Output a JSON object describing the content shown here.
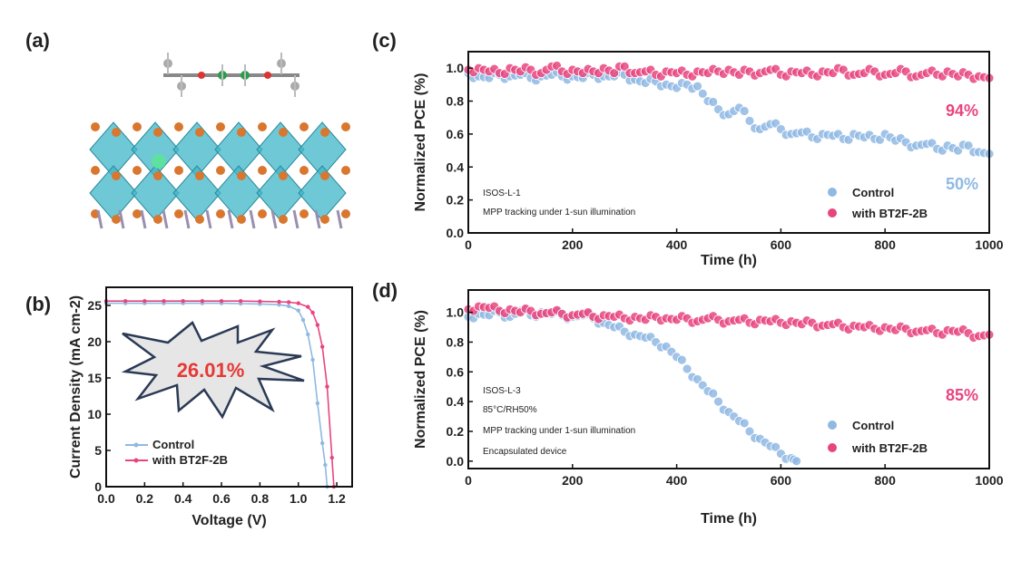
{
  "panel_labels": [
    "(a)",
    "(b)",
    "(c)",
    "(d)"
  ],
  "colors": {
    "control": "#8fb9e3",
    "bt2f": "#e8457f",
    "efficiency_text": "#e53935",
    "teal": "#3fb5c8",
    "orange": "#d9772e"
  },
  "panel_a": {
    "icon": "perovskite-molecule-structure"
  },
  "chart_data": [
    {
      "panel": "b",
      "type": "line",
      "xlabel": "Voltage (V)",
      "ylabel": "Current Density (mA cm-2)",
      "xlim": [
        0,
        1.28
      ],
      "ylim": [
        0,
        27.5
      ],
      "xticks": [
        0,
        0.2,
        0.4,
        0.6,
        0.8,
        1.0,
        1.2
      ],
      "xticklabels": [
        "0.0",
        "0.2",
        "0.4",
        "0.6",
        "0.8",
        "1.0",
        "1.2"
      ],
      "yticks": [
        0,
        5,
        10,
        15,
        20,
        25
      ],
      "yticklabels": [
        "0",
        "5",
        "10",
        "15",
        "20",
        "25"
      ],
      "grid": false,
      "legend": "bottom-left",
      "annotation": "26.01%",
      "series": [
        {
          "name": "Control",
          "x": [
            0,
            0.1,
            0.2,
            0.3,
            0.4,
            0.5,
            0.6,
            0.7,
            0.8,
            0.9,
            0.95,
            1.0,
            1.025,
            1.05,
            1.075,
            1.1,
            1.125,
            1.14,
            1.15
          ],
          "y": [
            25.3,
            25.3,
            25.3,
            25.3,
            25.3,
            25.3,
            25.3,
            25.25,
            25.2,
            25.1,
            24.9,
            24.3,
            23.0,
            21.0,
            17.5,
            11.5,
            6.0,
            3.0,
            0
          ]
        },
        {
          "name": "with BT2F-2B",
          "x": [
            0,
            0.1,
            0.2,
            0.3,
            0.4,
            0.5,
            0.6,
            0.7,
            0.8,
            0.9,
            0.95,
            1.0,
            1.05,
            1.075,
            1.1,
            1.125,
            1.15,
            1.175,
            1.185
          ],
          "y": [
            25.6,
            25.6,
            25.6,
            25.6,
            25.6,
            25.6,
            25.6,
            25.6,
            25.55,
            25.5,
            25.45,
            25.3,
            24.8,
            24.0,
            22.3,
            19.3,
            13.8,
            4.0,
            0
          ]
        }
      ]
    },
    {
      "panel": "c",
      "type": "scatter",
      "xlabel": "Time (h)",
      "ylabel": "Normalized PCE (%)",
      "xlim": [
        0,
        1000
      ],
      "ylim": [
        0,
        1.1
      ],
      "xticks": [
        0,
        200,
        400,
        600,
        800,
        1000
      ],
      "xticklabels": [
        "0",
        "200",
        "400",
        "600",
        "800",
        "1000"
      ],
      "yticks": [
        0,
        0.2,
        0.4,
        0.6,
        0.8,
        1.0
      ],
      "yticklabels": [
        "0.0",
        "0.2",
        "0.4",
        "0.6",
        "0.8",
        "1.0"
      ],
      "grid": false,
      "legend": "bottom-right",
      "annotations": [
        "ISOS-L-1",
        "MPP tracking under 1-sun illumination",
        "94%",
        "50%"
      ],
      "x": [
        0,
        20,
        40,
        60,
        80,
        100,
        120,
        140,
        160,
        180,
        200,
        220,
        240,
        260,
        280,
        300,
        320,
        340,
        360,
        380,
        400,
        420,
        440,
        460,
        480,
        500,
        520,
        540,
        560,
        580,
        600,
        620,
        640,
        660,
        680,
        700,
        720,
        740,
        760,
        780,
        800,
        820,
        840,
        860,
        880,
        900,
        920,
        940,
        960,
        980,
        1000
      ],
      "series": [
        {
          "name": "Control",
          "values": [
            0.97,
            0.95,
            0.94,
            0.96,
            0.95,
            0.96,
            0.94,
            0.95,
            0.96,
            0.95,
            0.95,
            0.94,
            0.96,
            0.95,
            0.95,
            0.96,
            0.93,
            0.91,
            0.92,
            0.9,
            0.88,
            0.9,
            0.89,
            0.8,
            0.75,
            0.72,
            0.76,
            0.68,
            0.63,
            0.66,
            0.63,
            0.6,
            0.61,
            0.58,
            0.6,
            0.59,
            0.57,
            0.6,
            0.58,
            0.57,
            0.6,
            0.56,
            0.55,
            0.53,
            0.54,
            0.51,
            0.53,
            0.5,
            0.53,
            0.49,
            0.48
          ]
        },
        {
          "name": "with BT2F-2B",
          "values": [
            0.99,
            1.0,
            0.98,
            0.97,
            1.0,
            0.98,
            0.99,
            0.97,
            1.01,
            0.98,
            0.99,
            0.97,
            0.98,
            1.0,
            0.97,
            1.01,
            0.97,
            0.98,
            0.96,
            0.98,
            0.97,
            0.96,
            0.98,
            0.97,
            0.98,
            0.99,
            0.96,
            0.98,
            0.97,
            0.99,
            0.96,
            0.98,
            0.97,
            0.96,
            0.98,
            0.97,
            0.99,
            0.96,
            0.97,
            0.98,
            0.96,
            0.97,
            0.98,
            0.95,
            0.97,
            0.96,
            0.98,
            0.95,
            0.96,
            0.95,
            0.94
          ]
        }
      ]
    },
    {
      "panel": "d",
      "type": "scatter",
      "xlabel": "Time (h)",
      "ylabel": "Normalized PCE (%)",
      "xlim": [
        0,
        1000
      ],
      "ylim": [
        -0.05,
        1.15
      ],
      "xticks": [
        0,
        200,
        400,
        600,
        800,
        1000
      ],
      "xticklabels": [
        "0",
        "200",
        "400",
        "600",
        "800",
        "1000"
      ],
      "yticks": [
        0,
        0.2,
        0.4,
        0.6,
        0.8,
        1.0
      ],
      "yticklabels": [
        "0.0",
        "0.2",
        "0.4",
        "0.6",
        "0.8",
        "1.0"
      ],
      "grid": false,
      "legend": "bottom-right",
      "annotations": [
        "ISOS-L-3",
        "85°C/RH50%",
        "MPP tracking under 1-sun illumination",
        "Encapsulated device",
        "85%"
      ],
      "series": [
        {
          "name": "Control",
          "x": [
            0,
            20,
            40,
            60,
            80,
            100,
            120,
            140,
            160,
            180,
            200,
            220,
            240,
            260,
            280,
            300,
            320,
            340,
            360,
            380,
            400,
            420,
            440,
            460,
            480,
            500,
            520,
            540,
            560,
            580,
            600,
            620,
            630
          ],
          "values": [
            0.97,
            0.99,
            0.98,
            1.0,
            0.97,
            1.01,
            0.98,
            1.0,
            0.99,
            0.98,
            0.97,
            0.98,
            0.96,
            0.93,
            0.9,
            0.87,
            0.85,
            0.83,
            0.8,
            0.77,
            0.7,
            0.62,
            0.55,
            0.47,
            0.4,
            0.33,
            0.27,
            0.2,
            0.15,
            0.1,
            0.05,
            0.02,
            0.0
          ]
        },
        {
          "name": "with BT2F-2B",
          "x": [
            0,
            20,
            40,
            60,
            80,
            100,
            120,
            140,
            160,
            180,
            200,
            220,
            240,
            260,
            280,
            300,
            320,
            340,
            360,
            380,
            400,
            420,
            440,
            460,
            480,
            500,
            520,
            540,
            560,
            580,
            600,
            620,
            640,
            660,
            680,
            700,
            720,
            740,
            760,
            780,
            800,
            820,
            840,
            860,
            880,
            900,
            920,
            940,
            960,
            980,
            1000
          ],
          "values": [
            1.02,
            1.04,
            1.03,
            1.01,
            1.02,
            1.0,
            1.01,
            0.99,
            1.0,
            0.99,
            0.98,
            0.99,
            0.97,
            0.98,
            0.97,
            0.96,
            0.97,
            0.95,
            0.97,
            0.96,
            0.95,
            0.96,
            0.94,
            0.96,
            0.95,
            0.94,
            0.95,
            0.93,
            0.95,
            0.94,
            0.93,
            0.94,
            0.92,
            0.93,
            0.91,
            0.92,
            0.9,
            0.91,
            0.9,
            0.89,
            0.9,
            0.88,
            0.89,
            0.87,
            0.88,
            0.86,
            0.88,
            0.87,
            0.86,
            0.84,
            0.85
          ]
        }
      ]
    }
  ]
}
